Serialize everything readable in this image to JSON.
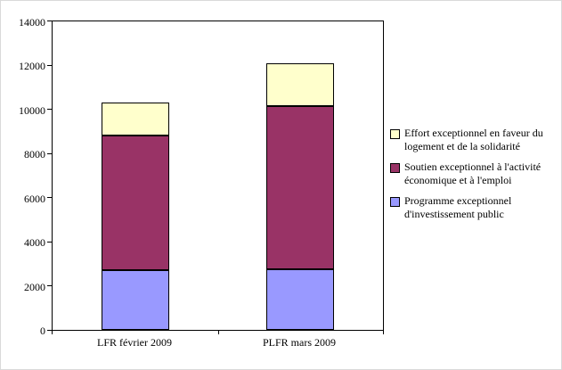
{
  "chart_data": {
    "type": "bar",
    "stacked": true,
    "title": "",
    "xlabel": "",
    "ylabel": "",
    "categories": [
      "LFR février 2009",
      "PLFR mars 2009"
    ],
    "series": [
      {
        "name": "Programme exceptionnel d'investissement public",
        "color": "#9999ff",
        "values": [
          2700,
          2750
        ]
      },
      {
        "name": "Soutien exceptionnel à l'activité économique et à l'emploi",
        "color": "#993366",
        "values": [
          6100,
          7400
        ]
      },
      {
        "name": "Effort exceptionnel en faveur du logement et de la solidarité",
        "color": "#ffffcc",
        "values": [
          1500,
          1950
        ]
      }
    ],
    "totals": [
      10300,
      12100
    ],
    "ylim": [
      0,
      14000
    ],
    "ytick_interval": 2000,
    "ytick_labels": [
      "0",
      "2000",
      "4000",
      "6000",
      "8000",
      "10000",
      "12000",
      "14000"
    ],
    "grid": false,
    "legend_position": "right",
    "legend_order_top_to_bottom": [
      "Effort exceptionnel en faveur du logement et de la solidarité",
      "Soutien exceptionnel à l'activité économique et à l'emploi",
      "Programme exceptionnel d'investissement public"
    ],
    "plot_border_color": "#000000",
    "background_color": "#ffffff"
  }
}
